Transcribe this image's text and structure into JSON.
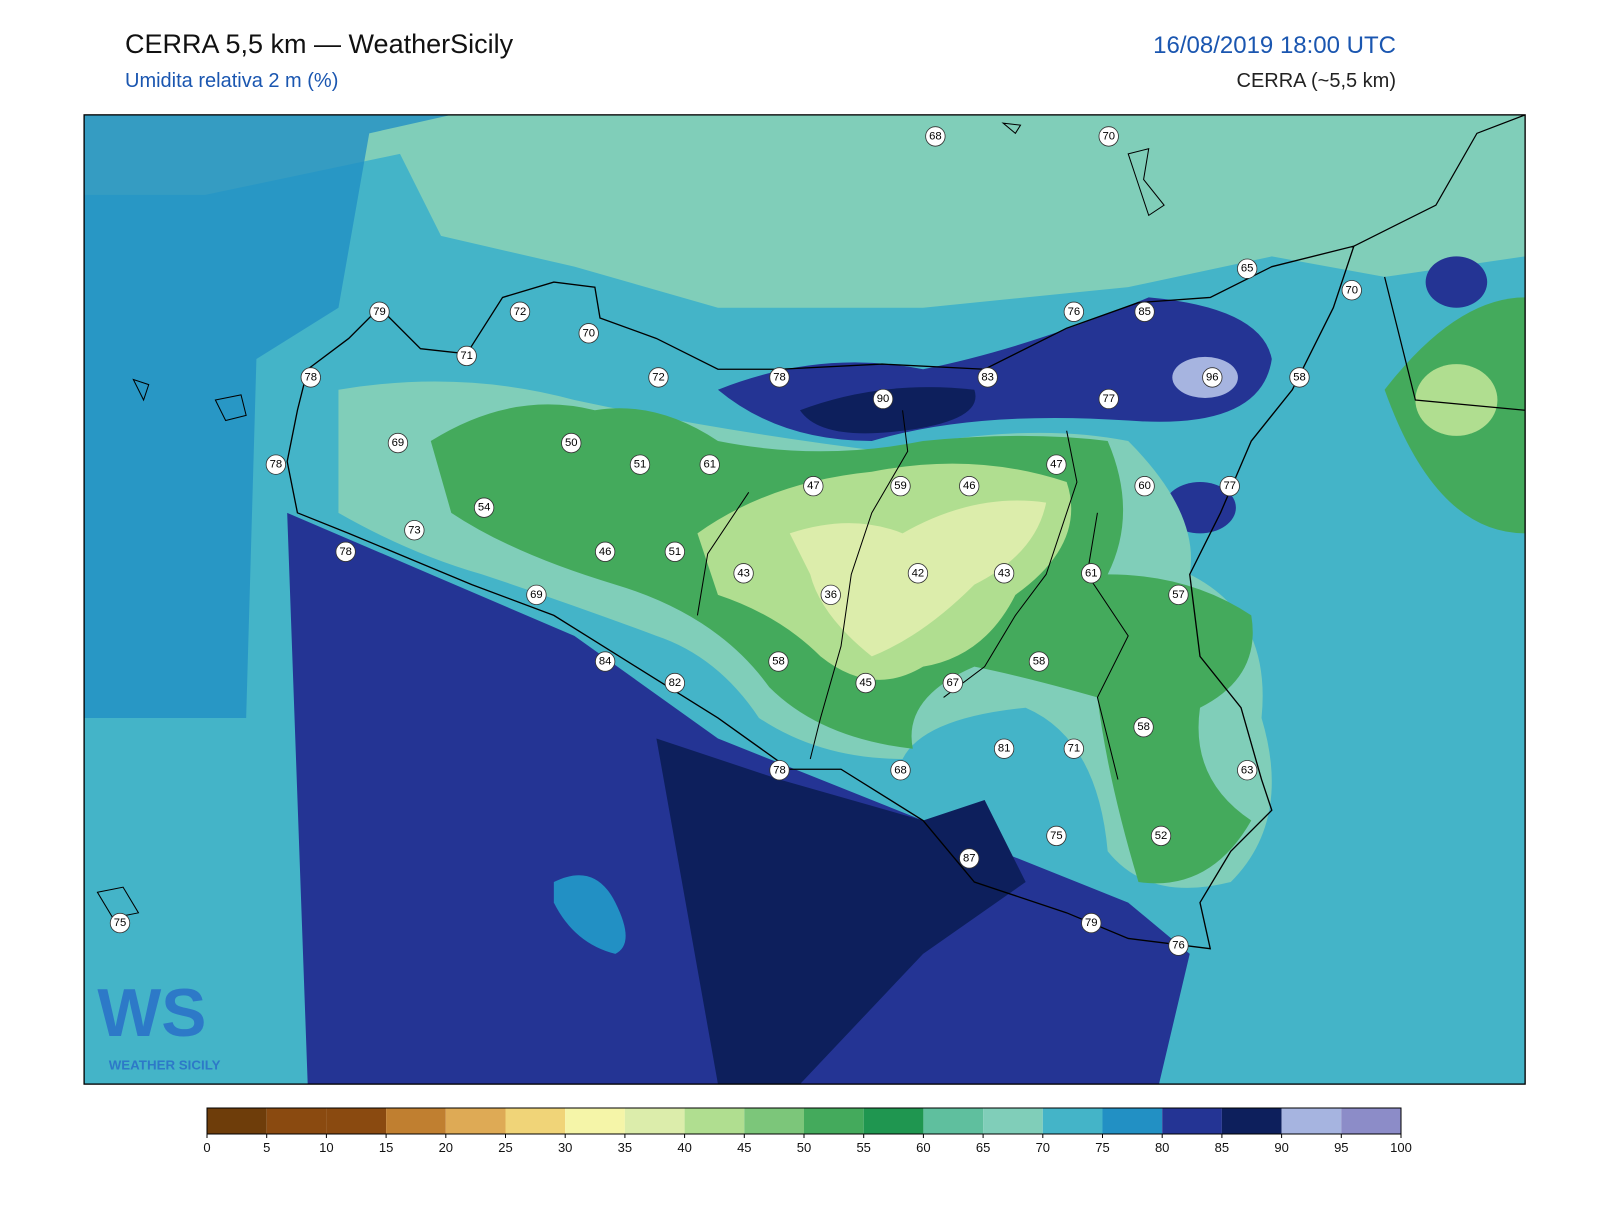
{
  "header": {
    "title": "CERRA 5,5 km — WeatherSicily",
    "subtitle": "Umidita relativa 2 m (%)",
    "datetime": "16/08/2019 18:00 UTC",
    "model": "CERRA (~5,5 km)"
  },
  "logo": {
    "mark": "WS",
    "text": "WEATHER SICILY"
  },
  "stations": [
    {
      "value": 68
    },
    {
      "value": 70
    },
    {
      "value": 65
    },
    {
      "value": 70
    },
    {
      "value": 79
    },
    {
      "value": 72
    },
    {
      "value": 70
    },
    {
      "value": 76
    },
    {
      "value": 85
    },
    {
      "value": 71
    },
    {
      "value": 78
    },
    {
      "value": 72
    },
    {
      "value": 78
    },
    {
      "value": 83
    },
    {
      "value": 96
    },
    {
      "value": 58
    },
    {
      "value": 90
    },
    {
      "value": 77
    },
    {
      "value": 69
    },
    {
      "value": 50
    },
    {
      "value": 78
    },
    {
      "value": 51
    },
    {
      "value": 61
    },
    {
      "value": 47
    },
    {
      "value": 47
    },
    {
      "value": 59
    },
    {
      "value": 46
    },
    {
      "value": 60
    },
    {
      "value": 77
    },
    {
      "value": 54
    },
    {
      "value": 73
    },
    {
      "value": 78
    },
    {
      "value": 46
    },
    {
      "value": 51
    },
    {
      "value": 43
    },
    {
      "value": 42
    },
    {
      "value": 43
    },
    {
      "value": 61
    },
    {
      "value": 36
    },
    {
      "value": 69
    },
    {
      "value": 57
    },
    {
      "value": 84
    },
    {
      "value": 58
    },
    {
      "value": 58
    },
    {
      "value": 82
    },
    {
      "value": 45
    },
    {
      "value": 67
    },
    {
      "value": 58
    },
    {
      "value": 81
    },
    {
      "value": 71
    },
    {
      "value": 78
    },
    {
      "value": 68
    },
    {
      "value": 63
    },
    {
      "value": 75
    },
    {
      "value": 52
    },
    {
      "value": 87
    },
    {
      "value": 75
    },
    {
      "value": 79
    },
    {
      "value": 76
    }
  ],
  "colorbar": {
    "ticks": [
      0,
      5,
      10,
      15,
      20,
      25,
      30,
      35,
      40,
      45,
      50,
      55,
      60,
      65,
      70,
      75,
      80,
      85,
      90,
      95,
      100
    ],
    "colors": [
      "#6e3d0a",
      "#8a4a10",
      "#8a4a10",
      "#c07f30",
      "#deaa55",
      "#f0d478",
      "#f5f5a8",
      "#dcedab",
      "#b0de90",
      "#7cc67a",
      "#44aa5c",
      "#1f9650",
      "#5fbf9e",
      "#80ceb9",
      "#44b4c8",
      "#2290c4",
      "#243494",
      "#0d1f5c",
      "#a6b4e0",
      "#8c8cc8"
    ]
  }
}
